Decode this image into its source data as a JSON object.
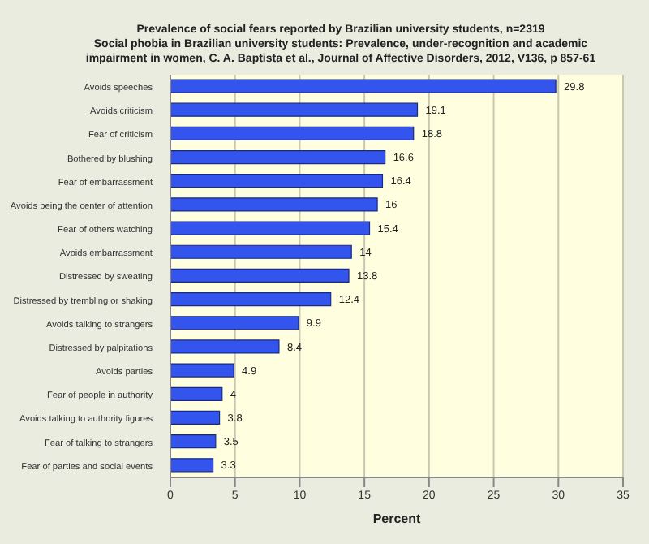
{
  "chart_data": {
    "type": "bar",
    "orientation": "horizontal",
    "title": "Prevalence of social fears reported by Brazilian university students, n=2319",
    "subtitle": "Social phobia in Brazilian university students: Prevalence, under-recognition and academic impairment in women, C. A. Baptista et al., Journal of Affective Disorders, 2012, V136, p 857-61",
    "xlabel": "Percent",
    "categories": [
      "Avoids speeches",
      "Avoids criticism",
      "Fear of criticism",
      "Bothered by blushing",
      "Fear of embarrassment",
      "Avoids being the center of attention",
      "Fear of others watching",
      "Avoids embarrassment",
      "Distressed by sweating",
      "Distressed by trembling or shaking",
      "Avoids talking to strangers",
      "Distressed by palpitations",
      "Avoids parties",
      "Fear of people in authority",
      "Avoids talking to authority figures",
      "Fear of talking to strangers",
      "Fear of parties and social events"
    ],
    "values": [
      29.8,
      19.1,
      18.8,
      16.6,
      16.4,
      16,
      15.4,
      14,
      13.8,
      12.4,
      9.9,
      8.4,
      4.9,
      4,
      3.8,
      3.5,
      3.3
    ],
    "color": "#3355ee",
    "xlim": [
      0,
      35
    ],
    "xticks": [
      0,
      5,
      10,
      15,
      20,
      25,
      30,
      35
    ],
    "grid": "x",
    "data_labels": true
  }
}
